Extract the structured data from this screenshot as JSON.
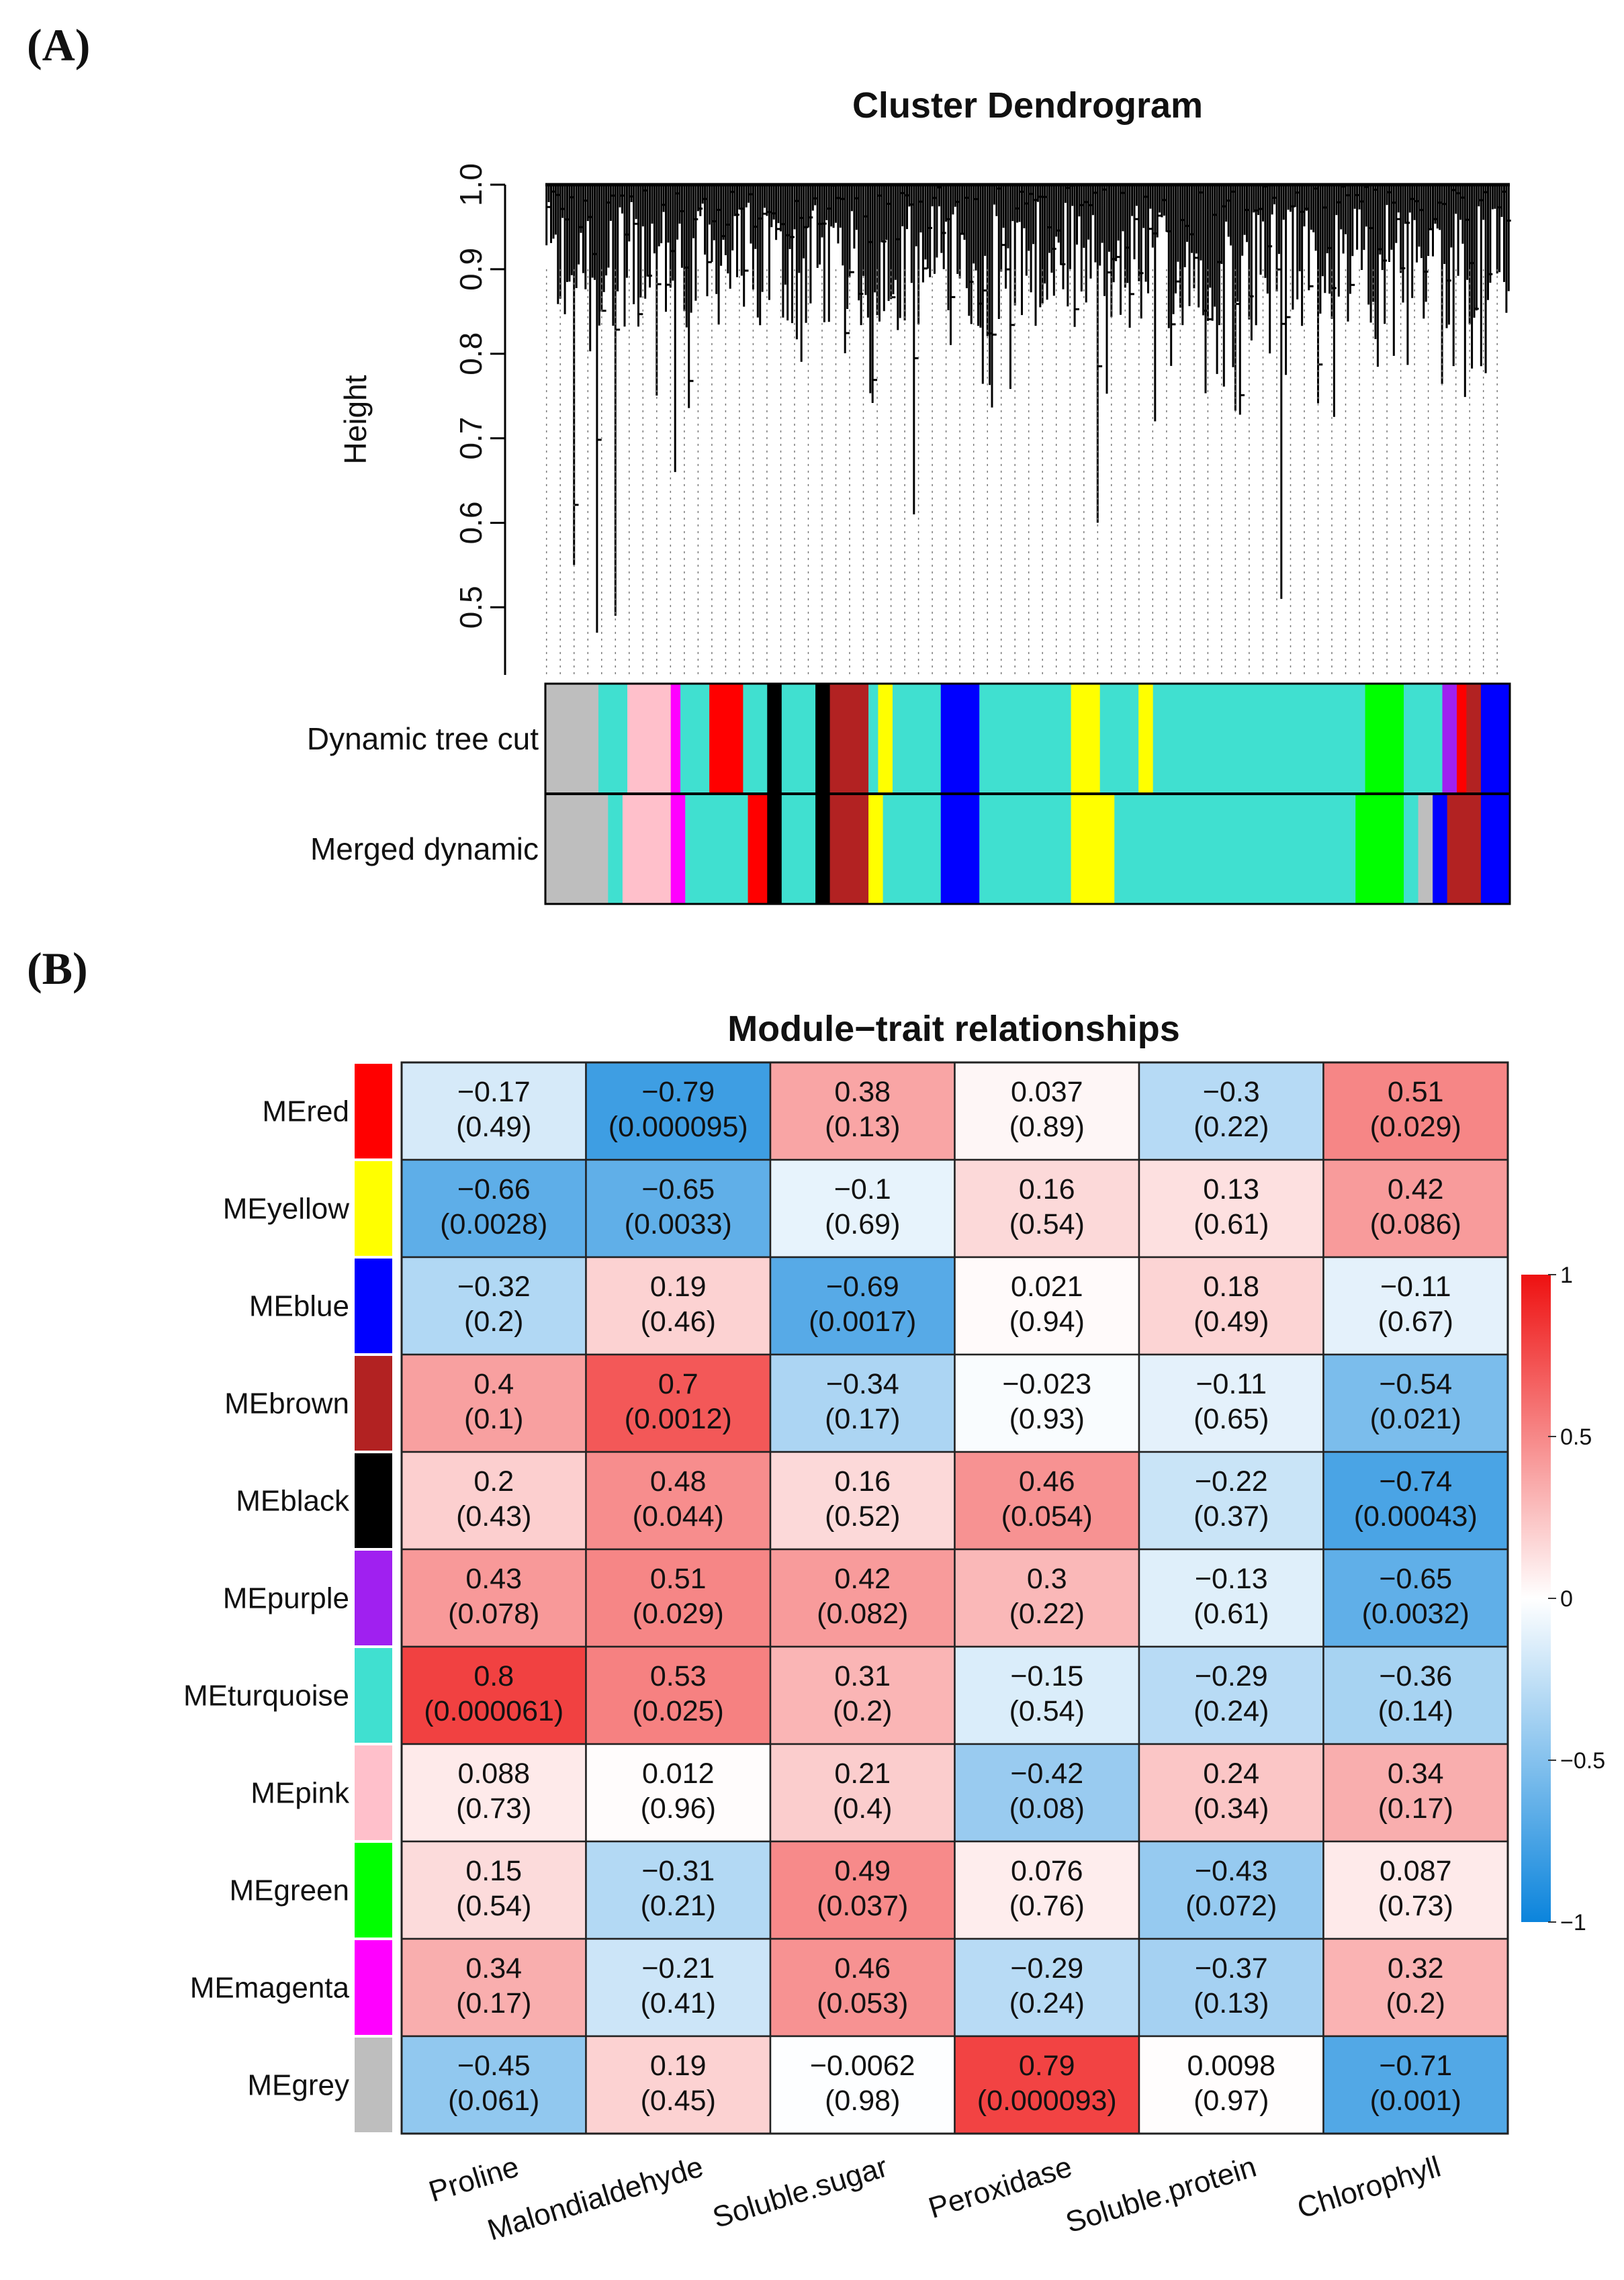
{
  "panel_labels": {
    "a": "(A)",
    "b": "(B)"
  },
  "chart_data": [
    {
      "type": "dendrogram",
      "title": "Cluster Dendrogram",
      "ylabel": "Height",
      "ylim": [
        0.42,
        1.0
      ],
      "y_ticks": [
        "0.5",
        "0.6",
        "0.7",
        "0.8",
        "0.9",
        "1.0"
      ],
      "y_tick_values": [
        0.5,
        0.6,
        0.7,
        0.8,
        0.9,
        1.0
      ],
      "colorbars": [
        {
          "label": "Dynamic tree cut",
          "segments": [
            {
              "color": "#bebebe",
              "start": 0.0,
              "end": 0.055
            },
            {
              "color": "#40e0d0",
              "start": 0.055,
              "end": 0.085
            },
            {
              "color": "#ffc0cb",
              "start": 0.085,
              "end": 0.13
            },
            {
              "color": "#ff00ff",
              "start": 0.13,
              "end": 0.14
            },
            {
              "color": "#40e0d0",
              "start": 0.14,
              "end": 0.17
            },
            {
              "color": "#ff0000",
              "start": 0.17,
              "end": 0.205
            },
            {
              "color": "#40e0d0",
              "start": 0.205,
              "end": 0.23
            },
            {
              "color": "#000000",
              "start": 0.23,
              "end": 0.245
            },
            {
              "color": "#40e0d0",
              "start": 0.245,
              "end": 0.28
            },
            {
              "color": "#000000",
              "start": 0.28,
              "end": 0.295
            },
            {
              "color": "#b22222",
              "start": 0.295,
              "end": 0.335
            },
            {
              "color": "#40e0d0",
              "start": 0.335,
              "end": 0.345
            },
            {
              "color": "#ffff00",
              "start": 0.345,
              "end": 0.36
            },
            {
              "color": "#40e0d0",
              "start": 0.36,
              "end": 0.41
            },
            {
              "color": "#0000ff",
              "start": 0.41,
              "end": 0.45
            },
            {
              "color": "#40e0d0",
              "start": 0.45,
              "end": 0.545
            },
            {
              "color": "#ffff00",
              "start": 0.545,
              "end": 0.575
            },
            {
              "color": "#40e0d0",
              "start": 0.575,
              "end": 0.615
            },
            {
              "color": "#ffff00",
              "start": 0.615,
              "end": 0.63
            },
            {
              "color": "#40e0d0",
              "start": 0.63,
              "end": 0.85
            },
            {
              "color": "#00ff00",
              "start": 0.85,
              "end": 0.89
            },
            {
              "color": "#40e0d0",
              "start": 0.89,
              "end": 0.93
            },
            {
              "color": "#a020f0",
              "start": 0.93,
              "end": 0.945
            },
            {
              "color": "#ff0000",
              "start": 0.945,
              "end": 0.955
            },
            {
              "color": "#b22222",
              "start": 0.955,
              "end": 0.97
            },
            {
              "color": "#0000ff",
              "start": 0.97,
              "end": 1.0
            }
          ]
        },
        {
          "label": "Merged dynamic",
          "segments": [
            {
              "color": "#bebebe",
              "start": 0.0,
              "end": 0.065
            },
            {
              "color": "#40e0d0",
              "start": 0.065,
              "end": 0.08
            },
            {
              "color": "#ffc0cb",
              "start": 0.08,
              "end": 0.13
            },
            {
              "color": "#ff00ff",
              "start": 0.13,
              "end": 0.145
            },
            {
              "color": "#40e0d0",
              "start": 0.145,
              "end": 0.21
            },
            {
              "color": "#ff0000",
              "start": 0.21,
              "end": 0.23
            },
            {
              "color": "#000000",
              "start": 0.23,
              "end": 0.245
            },
            {
              "color": "#40e0d0",
              "start": 0.245,
              "end": 0.28
            },
            {
              "color": "#000000",
              "start": 0.28,
              "end": 0.295
            },
            {
              "color": "#b22222",
              "start": 0.295,
              "end": 0.335
            },
            {
              "color": "#ffff00",
              "start": 0.335,
              "end": 0.35
            },
            {
              "color": "#40e0d0",
              "start": 0.35,
              "end": 0.41
            },
            {
              "color": "#0000ff",
              "start": 0.41,
              "end": 0.45
            },
            {
              "color": "#40e0d0",
              "start": 0.45,
              "end": 0.545
            },
            {
              "color": "#ffff00",
              "start": 0.545,
              "end": 0.59
            },
            {
              "color": "#40e0d0",
              "start": 0.59,
              "end": 0.84
            },
            {
              "color": "#00ff00",
              "start": 0.84,
              "end": 0.89
            },
            {
              "color": "#40e0d0",
              "start": 0.89,
              "end": 0.905
            },
            {
              "color": "#bebebe",
              "start": 0.905,
              "end": 0.92
            },
            {
              "color": "#0000ff",
              "start": 0.92,
              "end": 0.935
            },
            {
              "color": "#b22222",
              "start": 0.935,
              "end": 0.97
            },
            {
              "color": "#0000ff",
              "start": 0.97,
              "end": 1.0
            }
          ]
        }
      ]
    },
    {
      "type": "heatmap",
      "title": "Module−trait relationships",
      "rows": [
        "MEred",
        "MEyellow",
        "MEblue",
        "MEbrown",
        "MEblack",
        "MEpurple",
        "MEturquoise",
        "MEpink",
        "MEgreen",
        "MEmagenta",
        "MEgrey"
      ],
      "row_colors": [
        "#ff0000",
        "#ffff00",
        "#0000ff",
        "#b22222",
        "#000000",
        "#a020f0",
        "#40e0d0",
        "#ffc0cb",
        "#00ff00",
        "#ff00ff",
        "#bebebe"
      ],
      "columns": [
        "Proline",
        "Malondialdehyde",
        "Soluble.sugar",
        "Peroxidase",
        "Soluble.protein",
        "Chlorophyll"
      ],
      "values": [
        [
          -0.17,
          -0.79,
          0.38,
          0.037,
          -0.3,
          0.51
        ],
        [
          -0.66,
          -0.65,
          -0.1,
          0.16,
          0.13,
          0.42
        ],
        [
          -0.32,
          0.19,
          -0.69,
          0.021,
          0.18,
          -0.11
        ],
        [
          0.4,
          0.7,
          -0.34,
          -0.023,
          -0.11,
          -0.54
        ],
        [
          0.2,
          0.48,
          0.16,
          0.46,
          -0.22,
          -0.74
        ],
        [
          0.43,
          0.51,
          0.42,
          0.3,
          -0.13,
          -0.65
        ],
        [
          0.8,
          0.53,
          0.31,
          -0.15,
          -0.29,
          -0.36
        ],
        [
          0.088,
          0.012,
          0.21,
          -0.42,
          0.24,
          0.34
        ],
        [
          0.15,
          -0.31,
          0.49,
          0.076,
          -0.43,
          0.087
        ],
        [
          0.34,
          -0.21,
          0.46,
          -0.29,
          -0.37,
          0.32
        ],
        [
          -0.45,
          0.19,
          -0.0062,
          0.79,
          0.0098,
          -0.71
        ]
      ],
      "values_text": [
        [
          "−0.17",
          "−0.79",
          "0.38",
          "0.037",
          "−0.3",
          "0.51"
        ],
        [
          "−0.66",
          "−0.65",
          "−0.1",
          "0.16",
          "0.13",
          "0.42"
        ],
        [
          "−0.32",
          "0.19",
          "−0.69",
          "0.021",
          "0.18",
          "−0.11"
        ],
        [
          "0.4",
          "0.7",
          "−0.34",
          "−0.023",
          "−0.11",
          "−0.54"
        ],
        [
          "0.2",
          "0.48",
          "0.16",
          "0.46",
          "−0.22",
          "−0.74"
        ],
        [
          "0.43",
          "0.51",
          "0.42",
          "0.3",
          "−0.13",
          "−0.65"
        ],
        [
          "0.8",
          "0.53",
          "0.31",
          "−0.15",
          "−0.29",
          "−0.36"
        ],
        [
          "0.088",
          "0.012",
          "0.21",
          "−0.42",
          "0.24",
          "0.34"
        ],
        [
          "0.15",
          "−0.31",
          "0.49",
          "0.076",
          "−0.43",
          "0.087"
        ],
        [
          "0.34",
          "−0.21",
          "0.46",
          "−0.29",
          "−0.37",
          "0.32"
        ],
        [
          "−0.45",
          "0.19",
          "−0.0062",
          "0.79",
          "0.0098",
          "−0.71"
        ]
      ],
      "pvalues_text": [
        [
          "0.49",
          "0.000095",
          "0.13",
          "0.89",
          "0.22",
          "0.029"
        ],
        [
          "0.0028",
          "0.0033",
          "0.69",
          "0.54",
          "0.61",
          "0.086"
        ],
        [
          "0.2",
          "0.46",
          "0.0017",
          "0.94",
          "0.49",
          "0.67"
        ],
        [
          "0.1",
          "0.0012",
          "0.17",
          "0.93",
          "0.65",
          "0.021"
        ],
        [
          "0.43",
          "0.044",
          "0.52",
          "0.054",
          "0.37",
          "0.00043"
        ],
        [
          "0.078",
          "0.029",
          "0.082",
          "0.22",
          "0.61",
          "0.0032"
        ],
        [
          "0.000061",
          "0.025",
          "0.2",
          "0.54",
          "0.24",
          "0.14"
        ],
        [
          "0.73",
          "0.96",
          "0.4",
          "0.08",
          "0.34",
          "0.17"
        ],
        [
          "0.54",
          "0.21",
          "0.037",
          "0.76",
          "0.072",
          "0.73"
        ],
        [
          "0.17",
          "0.41",
          "0.053",
          "0.24",
          "0.13",
          "0.2"
        ],
        [
          "0.061",
          "0.45",
          "0.98",
          "0.000093",
          "0.97",
          "0.001"
        ]
      ],
      "color_scale": {
        "min": -1,
        "max": 1,
        "low": "#0b84dc",
        "mid": "#ffffff",
        "high": "#ee1111"
      },
      "legend_ticks": [
        "1",
        "0.5",
        "0",
        "−0.5",
        "−1"
      ],
      "legend_tick_values": [
        1,
        0.5,
        0,
        -0.5,
        -1
      ]
    }
  ]
}
